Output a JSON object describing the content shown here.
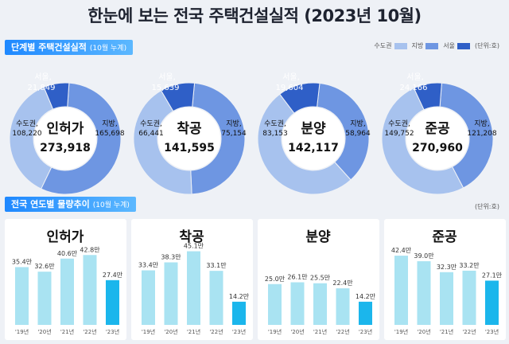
{
  "title": "한눈에 보는 전국 주택건설실적 (2023년 10월)",
  "section1": {
    "label": "단계별 주택건설실적",
    "sub": "(10월 누계)"
  },
  "section2": {
    "label": "전국 연도별 물량추이",
    "sub": "(10월 누계)"
  },
  "legend": [
    {
      "name": "수도권",
      "color": "#a7c2ee"
    },
    {
      "name": "지방",
      "color": "#6e96e2"
    },
    {
      "name": "서울",
      "color": "#2f5fc7"
    }
  ],
  "unit1": "(단위:호)",
  "unit2": "(단위:호)",
  "colors": {
    "metro": "#a7c2ee",
    "local": "#6e96e2",
    "seoul": "#2f5fc7",
    "bar_past": "#a9e3f2",
    "bar_latest": "#1bb6ec"
  },
  "chart_data": [
    {
      "type": "pie",
      "title": "인허가",
      "total": "273,918",
      "slices": [
        {
          "name": "서울",
          "value": 21849,
          "label": "21,849"
        },
        {
          "name": "수도권",
          "value": 108220,
          "label": "108,220"
        },
        {
          "name": "지방",
          "value": 165698,
          "label": "165,698"
        }
      ]
    },
    {
      "type": "pie",
      "title": "착공",
      "total": "141,595",
      "slices": [
        {
          "name": "서울",
          "value": 15639,
          "label": "15,639"
        },
        {
          "name": "수도권",
          "value": 66441,
          "label": "66,441"
        },
        {
          "name": "지방",
          "value": 75154,
          "label": "75,154"
        }
      ]
    },
    {
      "type": "pie",
      "title": "분양",
      "total": "142,117",
      "slices": [
        {
          "name": "서울",
          "value": 19604,
          "label": "19,604"
        },
        {
          "name": "수도권",
          "value": 83153,
          "label": "83,153"
        },
        {
          "name": "지방",
          "value": 58964,
          "label": "58,964"
        }
      ]
    },
    {
      "type": "pie",
      "title": "준공",
      "total": "270,960",
      "slices": [
        {
          "name": "서울",
          "value": 24166,
          "label": "24,166"
        },
        {
          "name": "수도권",
          "value": 149752,
          "label": "149,752"
        },
        {
          "name": "지방",
          "value": 121208,
          "label": "121,208"
        }
      ]
    },
    {
      "type": "bar",
      "title": "인허가",
      "categories": [
        "'19년",
        "'20년",
        "'21년",
        "'22년",
        "'23년"
      ],
      "values": [
        35.4,
        32.6,
        40.6,
        42.8,
        27.4
      ],
      "labels": [
        "35.4만",
        "32.6만",
        "40.6만",
        "42.8만",
        "27.4만"
      ]
    },
    {
      "type": "bar",
      "title": "착공",
      "categories": [
        "'19년",
        "'20년",
        "'21년",
        "'22년",
        "'23년"
      ],
      "values": [
        33.4,
        38.3,
        45.1,
        33.1,
        14.2
      ],
      "labels": [
        "33.4만",
        "38.3만",
        "45.1만",
        "33.1만",
        "14.2만"
      ]
    },
    {
      "type": "bar",
      "title": "분양",
      "categories": [
        "'19년",
        "'20년",
        "'21년",
        "'22년",
        "'23년"
      ],
      "values": [
        25.0,
        26.1,
        25.5,
        22.4,
        14.2
      ],
      "labels": [
        "25.0만",
        "26.1만",
        "25.5만",
        "22.4만",
        "14.2만"
      ]
    },
    {
      "type": "bar",
      "title": "준공",
      "categories": [
        "'19년",
        "'20년",
        "'21년",
        "'22년",
        "'23년"
      ],
      "values": [
        42.4,
        39.0,
        32.3,
        33.2,
        27.1
      ],
      "labels": [
        "42.4만",
        "39.0만",
        "32.3만",
        "33.2만",
        "27.1만"
      ]
    }
  ]
}
